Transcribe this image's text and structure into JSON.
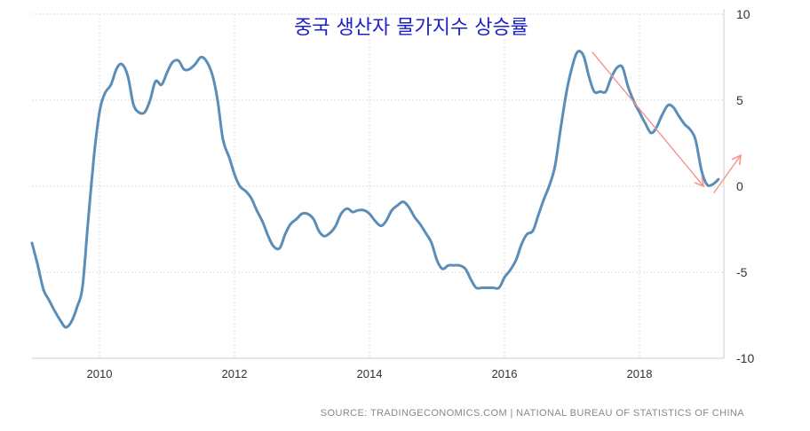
{
  "chart_data": {
    "type": "line",
    "title": "중국 생산자 물가지수 상승률",
    "source": "SOURCE: TRADINGECONOMICS.COM | NATIONAL BUREAU OF STATISTICS OF CHINA",
    "xlabel": "",
    "ylabel": "",
    "xlim": [
      2009.0,
      2019.25
    ],
    "ylim": [
      -10,
      10
    ],
    "x_ticks": [
      2010,
      2012,
      2014,
      2016,
      2018
    ],
    "x_tick_labels": [
      "2010",
      "2012",
      "2014",
      "2016",
      "2018"
    ],
    "y_ticks": [
      10,
      5,
      0,
      -5,
      -10
    ],
    "y_tick_labels": [
      "10",
      "5",
      "0",
      "-5",
      "-10"
    ],
    "y_axis_position": "right",
    "grid": true,
    "colors": {
      "line": "#5b8db9",
      "annotation": "#f4938f",
      "title": "#1e22c8"
    },
    "series": [
      {
        "x": [
          2009.0,
          2009.08,
          2009.17,
          2009.25,
          2009.33,
          2009.42,
          2009.5,
          2009.58,
          2009.67,
          2009.75,
          2009.83,
          2009.92,
          2010.0,
          2010.08,
          2010.17,
          2010.25,
          2010.33,
          2010.42,
          2010.5,
          2010.58,
          2010.67,
          2010.75,
          2010.83,
          2010.92,
          2011.0,
          2011.08,
          2011.17,
          2011.25,
          2011.33,
          2011.42,
          2011.5,
          2011.58,
          2011.67,
          2011.75,
          2011.83,
          2011.92,
          2012.0,
          2012.08,
          2012.17,
          2012.25,
          2012.33,
          2012.42,
          2012.5,
          2012.58,
          2012.67,
          2012.75,
          2012.83,
          2012.92,
          2013.0,
          2013.08,
          2013.17,
          2013.25,
          2013.33,
          2013.42,
          2013.5,
          2013.58,
          2013.67,
          2013.75,
          2013.83,
          2013.92,
          2014.0,
          2014.08,
          2014.17,
          2014.25,
          2014.33,
          2014.42,
          2014.5,
          2014.58,
          2014.67,
          2014.75,
          2014.83,
          2014.92,
          2015.0,
          2015.08,
          2015.17,
          2015.25,
          2015.33,
          2015.42,
          2015.5,
          2015.58,
          2015.67,
          2015.75,
          2015.83,
          2015.92,
          2016.0,
          2016.08,
          2016.17,
          2016.25,
          2016.33,
          2016.42,
          2016.5,
          2016.58,
          2016.67,
          2016.75,
          2016.83,
          2016.92,
          2017.0,
          2017.08,
          2017.17,
          2017.25,
          2017.33,
          2017.42,
          2017.5,
          2017.58,
          2017.67,
          2017.75,
          2017.83,
          2017.92,
          2018.0,
          2018.08,
          2018.17,
          2018.25,
          2018.33,
          2018.42,
          2018.5,
          2018.58,
          2018.67,
          2018.75,
          2018.83,
          2018.92,
          2019.0,
          2019.08,
          2019.17
        ],
        "y": [
          -3.3,
          -4.5,
          -6.0,
          -6.6,
          -7.2,
          -7.8,
          -8.2,
          -7.9,
          -7.0,
          -5.8,
          -2.1,
          1.8,
          4.3,
          5.4,
          5.9,
          6.8,
          7.1,
          6.4,
          4.8,
          4.3,
          4.3,
          5.0,
          6.1,
          5.9,
          6.6,
          7.2,
          7.3,
          6.8,
          6.8,
          7.1,
          7.5,
          7.3,
          6.5,
          5.0,
          2.7,
          1.7,
          0.7,
          0.0,
          -0.3,
          -0.7,
          -1.4,
          -2.1,
          -2.9,
          -3.5,
          -3.6,
          -2.8,
          -2.2,
          -1.9,
          -1.6,
          -1.6,
          -1.9,
          -2.6,
          -2.9,
          -2.7,
          -2.3,
          -1.6,
          -1.3,
          -1.5,
          -1.4,
          -1.4,
          -1.6,
          -2.0,
          -2.3,
          -2.0,
          -1.4,
          -1.1,
          -0.9,
          -1.2,
          -1.8,
          -2.2,
          -2.7,
          -3.3,
          -4.3,
          -4.8,
          -4.6,
          -4.6,
          -4.6,
          -4.8,
          -5.4,
          -5.9,
          -5.9,
          -5.9,
          -5.9,
          -5.9,
          -5.3,
          -4.9,
          -4.3,
          -3.4,
          -2.8,
          -2.6,
          -1.7,
          -0.8,
          0.1,
          1.2,
          3.3,
          5.5,
          6.9,
          7.8,
          7.6,
          6.4,
          5.5,
          5.5,
          5.5,
          6.3,
          6.9,
          6.9,
          5.8,
          4.9,
          4.3,
          3.7,
          3.1,
          3.4,
          4.1,
          4.7,
          4.6,
          4.1,
          3.6,
          3.3,
          2.7,
          0.9,
          0.1,
          0.1,
          0.4
        ]
      }
    ],
    "annotations": [
      {
        "type": "arrow",
        "from": [
          2017.3,
          7.8
        ],
        "to": [
          2018.95,
          0.0
        ]
      },
      {
        "type": "arrow",
        "from": [
          2019.1,
          -0.4
        ],
        "to": [
          2019.5,
          1.8
        ]
      }
    ]
  }
}
